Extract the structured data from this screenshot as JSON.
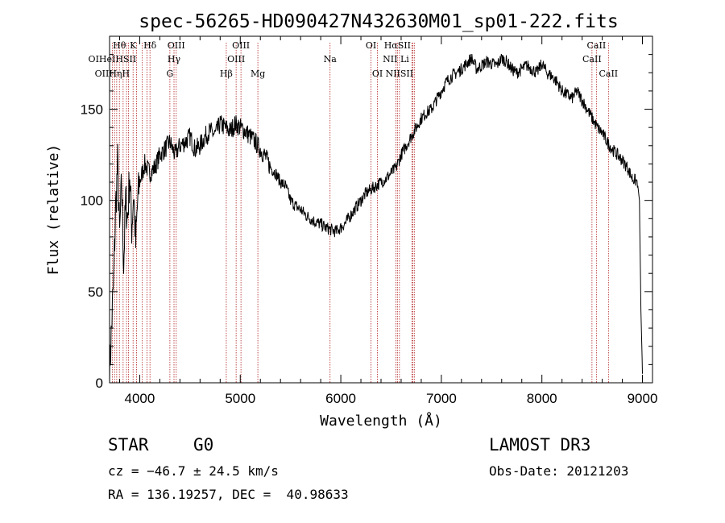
{
  "chart_data": {
    "type": "line",
    "title": "spec-56265-HD090427N432630M01_sp01-222.fits",
    "xlabel": "Wavelength (Å)",
    "ylabel": "Flux (relative)",
    "xlim": [
      3700,
      9100
    ],
    "ylim": [
      0,
      190
    ],
    "xticks": [
      4000,
      5000,
      6000,
      7000,
      8000,
      9000
    ],
    "xtick_labels": [
      "4000",
      "5000",
      "6000",
      "7000",
      "8000",
      "9000"
    ],
    "yticks": [
      0,
      50,
      100,
      150
    ],
    "ytick_labels": [
      "0",
      "50",
      "100",
      "150"
    ],
    "series": [
      {
        "name": "flux",
        "x": [
          3700,
          3720,
          3740,
          3760,
          3780,
          3800,
          3820,
          3840,
          3860,
          3880,
          3900,
          3920,
          3940,
          3960,
          3980,
          4000,
          4050,
          4100,
          4150,
          4200,
          4250,
          4300,
          4350,
          4400,
          4450,
          4500,
          4550,
          4600,
          4650,
          4700,
          4750,
          4800,
          4850,
          4900,
          4950,
          5000,
          5050,
          5100,
          5150,
          5200,
          5250,
          5300,
          5350,
          5400,
          5450,
          5500,
          5550,
          5600,
          5650,
          5700,
          5750,
          5800,
          5850,
          5900,
          5950,
          6000,
          6050,
          6100,
          6150,
          6200,
          6250,
          6300,
          6350,
          6400,
          6450,
          6500,
          6550,
          6600,
          6650,
          6700,
          6750,
          6800,
          6850,
          6900,
          6950,
          7000,
          7050,
          7100,
          7150,
          7200,
          7250,
          7300,
          7350,
          7400,
          7450,
          7500,
          7550,
          7600,
          7650,
          7700,
          7750,
          7800,
          7850,
          7900,
          7950,
          8000,
          8050,
          8100,
          8150,
          8200,
          8250,
          8300,
          8350,
          8400,
          8450,
          8500,
          8550,
          8600,
          8650,
          8700,
          8750,
          8800,
          8850,
          8900,
          8950,
          8970,
          8985,
          9000
        ],
        "values": [
          5,
          30,
          55,
          95,
          120,
          80,
          110,
          65,
          100,
          90,
          115,
          85,
          105,
          75,
          100,
          110,
          120,
          115,
          118,
          125,
          128,
          132,
          125,
          130,
          132,
          135,
          128,
          130,
          135,
          138,
          136,
          142,
          140,
          138,
          142,
          140,
          138,
          135,
          132,
          128,
          124,
          118,
          115,
          110,
          108,
          100,
          97,
          95,
          92,
          90,
          88,
          87,
          85,
          84,
          83,
          85,
          88,
          92,
          96,
          100,
          104,
          106,
          108,
          110,
          112,
          115,
          118,
          125,
          130,
          135,
          140,
          145,
          148,
          150,
          155,
          160,
          165,
          168,
          170,
          172,
          175,
          178,
          172,
          174,
          176,
          175,
          174,
          178,
          176,
          172,
          170,
          172,
          174,
          172,
          170,
          175,
          170,
          168,
          165,
          160,
          158,
          156,
          160,
          155,
          150,
          145,
          140,
          137,
          132,
          128,
          125,
          122,
          118,
          112,
          110,
          100,
          40,
          5
        ]
      }
    ],
    "reference_lines": {
      "wavelengths": [
        3727,
        3750,
        3771,
        3798,
        3835,
        3869,
        3889,
        3934,
        3968,
        4026,
        4072,
        4102,
        4300,
        4341,
        4363,
        4861,
        4959,
        5007,
        5175,
        5893,
        6300,
        6364,
        6548,
        6563,
        6583,
        6707,
        6716,
        6731,
        8498,
        8542,
        8662
      ],
      "labels": [
        {
          "text": "Hθ",
          "wavelength": 3798,
          "row": 1
        },
        {
          "text": "K",
          "wavelength": 3934,
          "row": 1
        },
        {
          "text": "Hδ",
          "wavelength": 4102,
          "row": 1
        },
        {
          "text": "OIII",
          "wavelength": 4363,
          "row": 1
        },
        {
          "text": "OIII",
          "wavelength": 5007,
          "row": 1
        },
        {
          "text": "OI",
          "wavelength": 6300,
          "row": 1
        },
        {
          "text": "HαSII",
          "wavelength": 6563,
          "row": 1
        },
        {
          "text": "CaII",
          "wavelength": 8542,
          "row": 1
        },
        {
          "text": "OIHeIHSII",
          "wavelength": 3727,
          "row": 2
        },
        {
          "text": "Hγ",
          "wavelength": 4341,
          "row": 2
        },
        {
          "text": "OIII",
          "wavelength": 4959,
          "row": 2
        },
        {
          "text": "Na",
          "wavelength": 5893,
          "row": 2
        },
        {
          "text": "NII Li",
          "wavelength": 6548,
          "row": 2
        },
        {
          "text": "CaII",
          "wavelength": 8498,
          "row": 2
        },
        {
          "text": "OIIHηH",
          "wavelength": 3727,
          "row": 3
        },
        {
          "text": "G",
          "wavelength": 4300,
          "row": 3
        },
        {
          "text": "Hβ",
          "wavelength": 4861,
          "row": 3
        },
        {
          "text": "Mg",
          "wavelength": 5175,
          "row": 3
        },
        {
          "text": "OI",
          "wavelength": 6364,
          "row": 3
        },
        {
          "text": "NIISII",
          "wavelength": 6583,
          "row": 3
        },
        {
          "text": "CaII",
          "wavelength": 8662,
          "row": 3
        }
      ]
    }
  },
  "info": {
    "class": "STAR",
    "subclass": "G0",
    "survey": "LAMOST DR3",
    "cz": "cz = −46.7 ± 24.5 km/s",
    "obs_date": "Obs-Date: 20121203",
    "coords": "RA = 136.19257, DEC =  40.98633"
  },
  "colors": {
    "line": "#000000",
    "reference": "#b22222"
  }
}
